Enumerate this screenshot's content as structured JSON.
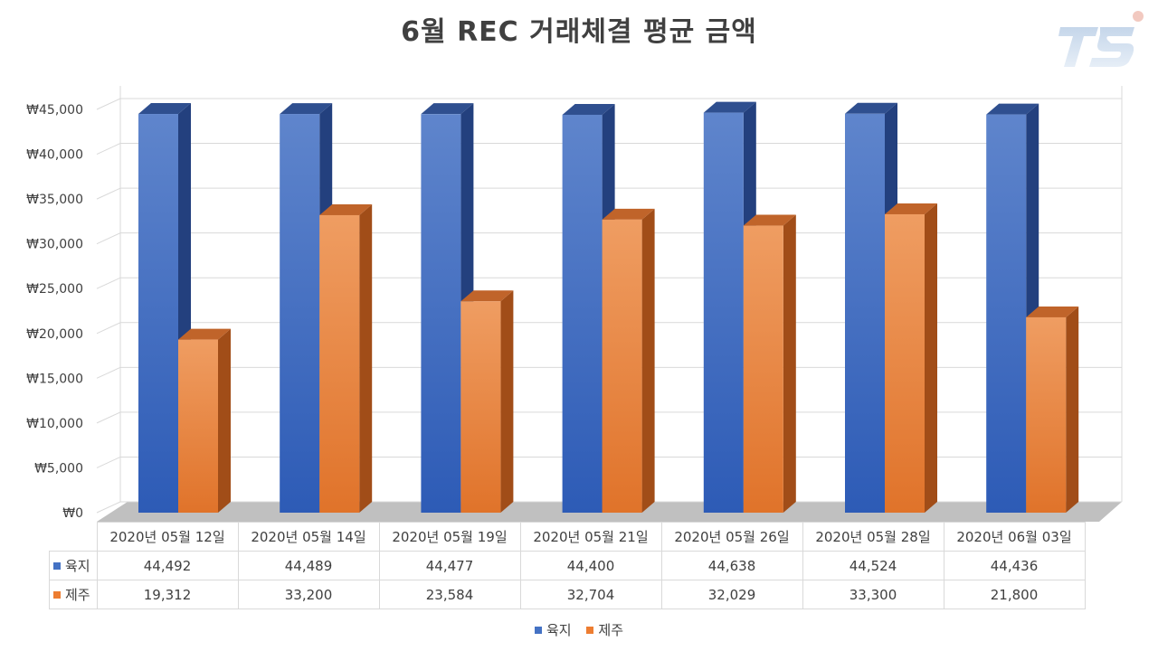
{
  "chart_data": {
    "type": "bar",
    "title": "6월 REC 거래체결 평균 금액",
    "categories": [
      "2020년 05월 12일",
      "2020년 05월 14일",
      "2020년 05월 19일",
      "2020년 05월 21일",
      "2020년 05월 26일",
      "2020년 05월 28일",
      "2020년 06월 03일"
    ],
    "series": [
      {
        "name": "육지",
        "values": [
          44492,
          44489,
          44477,
          44400,
          44638,
          44524,
          44436
        ],
        "display": [
          "44,492",
          "44,489",
          "44,477",
          "44,400",
          "44,638",
          "44,524",
          "44,436"
        ],
        "color": "#4472c4"
      },
      {
        "name": "제주",
        "values": [
          19312,
          33200,
          23584,
          32704,
          32029,
          33300,
          21800
        ],
        "display": [
          "19,312",
          "33,200",
          "23,584",
          "32,704",
          "32,029",
          "33,300",
          "21,800"
        ],
        "color": "#ed7d31"
      }
    ],
    "ylim": [
      0,
      45000
    ],
    "yticks": [
      0,
      5000,
      10000,
      15000,
      20000,
      25000,
      30000,
      35000,
      40000,
      45000
    ],
    "ytick_labels": [
      "₩0",
      "₩5,000",
      "₩10,000",
      "₩15,000",
      "₩20,000",
      "₩25,000",
      "₩30,000",
      "₩35,000",
      "₩40,000",
      "₩45,000"
    ],
    "grid": true,
    "legend": "bottom",
    "data_table": true,
    "style": "3d-bar"
  },
  "logo_text": "TS"
}
